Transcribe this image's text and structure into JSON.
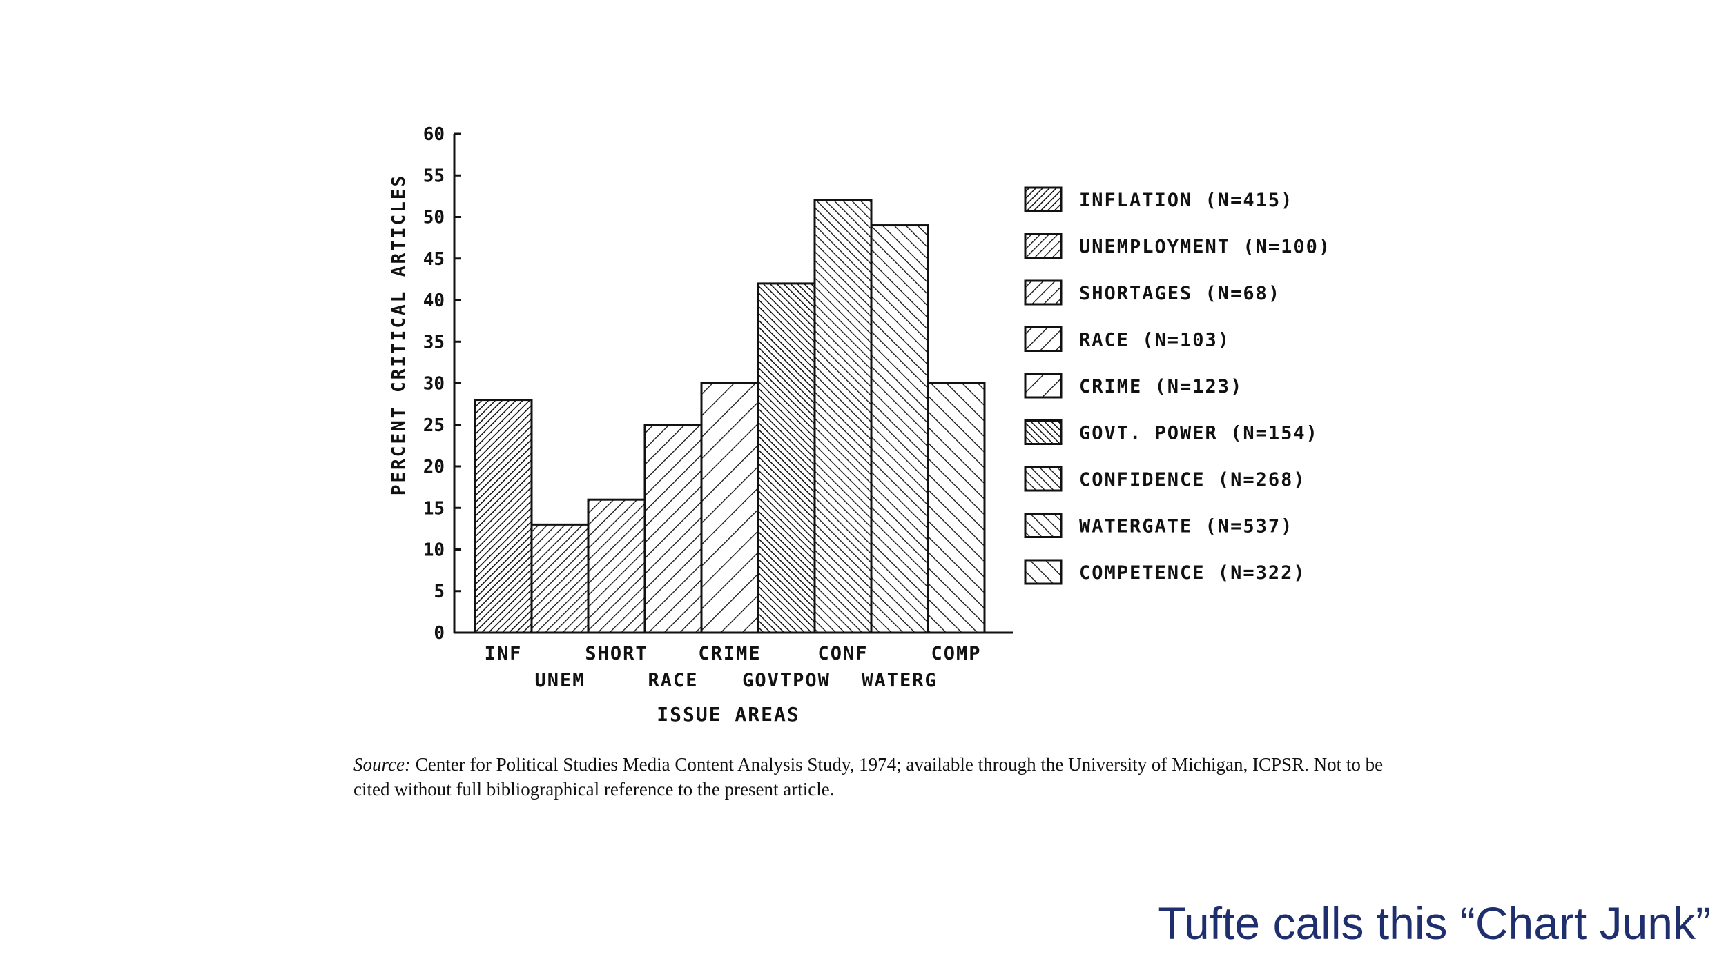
{
  "slide": {
    "caption": "Tufte calls this “Chart Junk”"
  },
  "source_note": {
    "label": "Source:",
    "text": "Center for Political Studies Media Content Analysis Study, 1974; available through the University of Michigan, ICPSR. Not to be cited without full bibliographical reference to the present article."
  },
  "chart_data": {
    "type": "bar",
    "title": "",
    "xlabel": "ISSUE AREAS",
    "ylabel": "PERCENT CRITICAL ARTICLES",
    "ylim": [
      0,
      60
    ],
    "yticks": [
      0,
      5,
      10,
      15,
      20,
      25,
      30,
      35,
      40,
      45,
      50,
      55,
      60
    ],
    "categories": [
      "INF",
      "UNEM",
      "SHORT",
      "RACE",
      "CRIME",
      "GOVTPOW",
      "CONF",
      "WATERG",
      "COMP"
    ],
    "values": [
      28,
      13,
      16,
      25,
      30,
      42,
      52,
      49,
      30
    ],
    "grid": false,
    "legend_position": "right",
    "legend": [
      "INFLATION (N=415)",
      "UNEMPLOYMENT (N=100)",
      "SHORTAGES (N=68)",
      "RACE (N=103)",
      "CRIME (N=123)",
      "GOVT. POWER (N=154)",
      "CONFIDENCE (N=268)",
      "WATERGATE (N=537)",
      "COMPETENCE (N=322)"
    ],
    "colors": {
      "ink": "#111111",
      "fill": "#ffffff"
    }
  }
}
